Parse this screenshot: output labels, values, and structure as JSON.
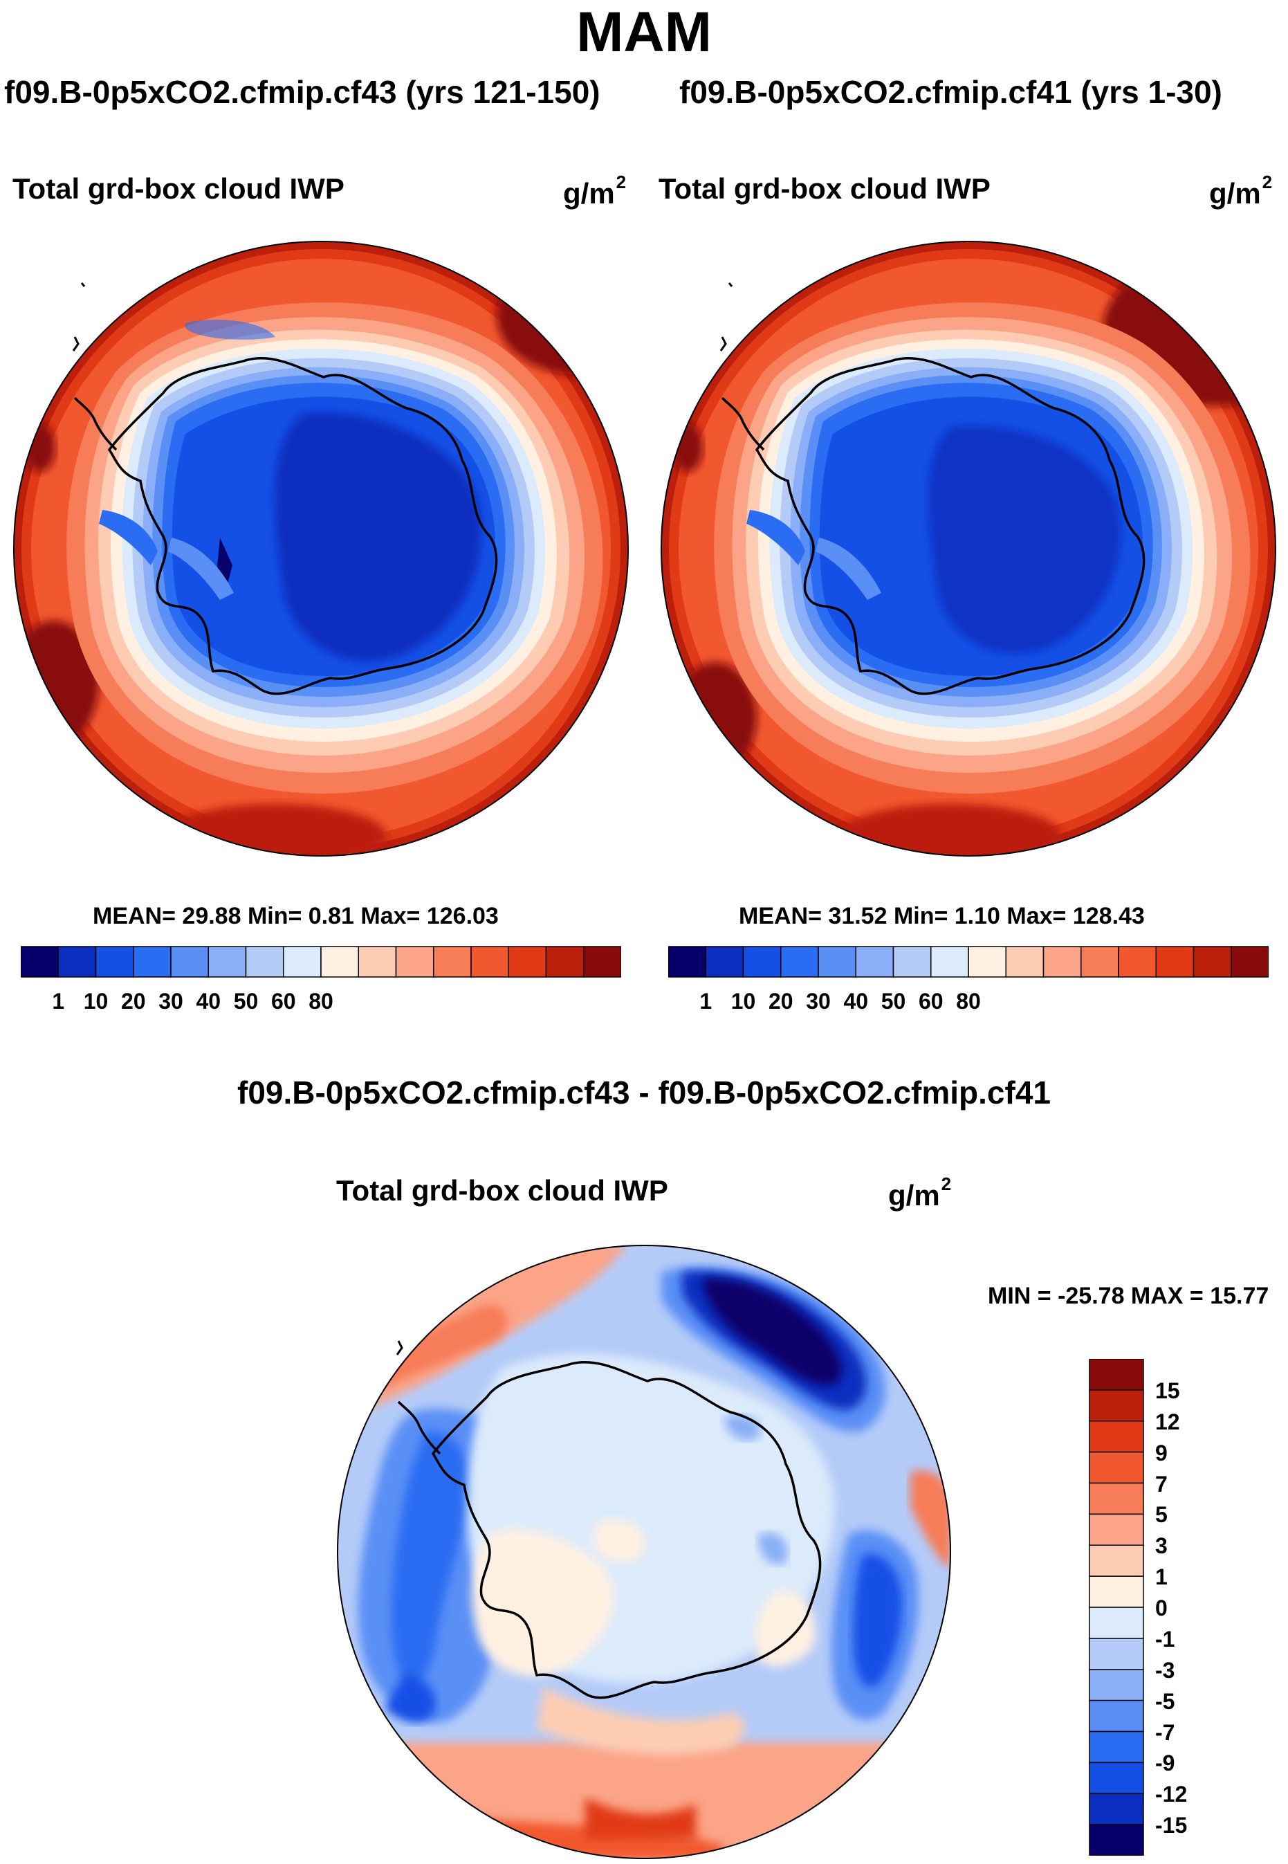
{
  "title": "MAM",
  "panels": [
    {
      "case": "f09.B-0p5xCO2.cfmip.cf43 (yrs 121-150)",
      "variable": "Total grd-box cloud IWP",
      "units": "g/m",
      "units_exp": "2",
      "stats": "MEAN=  29.88  Min=   0.81  Max= 126.03"
    },
    {
      "case": "f09.B-0p5xCO2.cfmip.cf41 (yrs 1-30)",
      "variable": "Total grd-box cloud IWP",
      "units": "g/m",
      "units_exp": "2",
      "stats": "MEAN=  31.52  Min=   1.10  Max= 128.43"
    }
  ],
  "diff": {
    "title": "f09.B-0p5xCO2.cfmip.cf43 - f09.B-0p5xCO2.cfmip.cf41",
    "variable": "Total grd-box cloud IWP",
    "units": "g/m",
    "units_exp": "2",
    "stats": "MIN = -25.78 MAX =  15.77"
  },
  "chart_data": [
    {
      "type": "heatmap",
      "projection": "south polar stereographic",
      "title": "Total grd-box cloud IWP",
      "units": "g/m2",
      "stats": {
        "mean": 29.88,
        "min": 0.81,
        "max": 126.03
      },
      "colorbar": {
        "labels": [
          "1",
          "10",
          "20",
          "30",
          "40",
          "50",
          "60",
          "80"
        ],
        "colors": [
          "#08006a",
          "#0a2ec0",
          "#1550e6",
          "#2a6cf2",
          "#5a8ff6",
          "#8aaef7",
          "#b4cbf8",
          "#dcebfb",
          "#fff0e2",
          "#fdccb2",
          "#fba487",
          "#f77c58",
          "#f2582f",
          "#e13a16",
          "#bc1f0c",
          "#8a0a0a"
        ]
      }
    },
    {
      "type": "heatmap",
      "projection": "south polar stereographic",
      "title": "Total grd-box cloud IWP",
      "units": "g/m2",
      "stats": {
        "mean": 31.52,
        "min": 1.1,
        "max": 128.43
      },
      "colorbar": {
        "labels": [
          "1",
          "10",
          "20",
          "30",
          "40",
          "50",
          "60",
          "80"
        ],
        "colors": [
          "#08006a",
          "#0a2ec0",
          "#1550e6",
          "#2a6cf2",
          "#5a8ff6",
          "#8aaef7",
          "#b4cbf8",
          "#dcebfb",
          "#fff0e2",
          "#fdccb2",
          "#fba487",
          "#f77c58",
          "#f2582f",
          "#e13a16",
          "#bc1f0c",
          "#8a0a0a"
        ]
      }
    },
    {
      "type": "heatmap",
      "projection": "south polar stereographic",
      "title": "Total grd-box cloud IWP",
      "units": "g/m2",
      "stats": {
        "min": -25.78,
        "max": 15.77
      },
      "colorbar": {
        "labels": [
          "15",
          "12",
          "9",
          "7",
          "5",
          "3",
          "1",
          "0",
          "-1",
          "-3",
          "-5",
          "-7",
          "-9",
          "-12",
          "-15"
        ],
        "colors": [
          "#8a0a0a",
          "#bc1f0c",
          "#e13a16",
          "#f2582f",
          "#f77c58",
          "#fba487",
          "#fdccb2",
          "#fff0e2",
          "#dcebfb",
          "#b4cbf8",
          "#8aaef7",
          "#5a8ff6",
          "#2a6cf2",
          "#1550e6",
          "#0a2ec0",
          "#08006a"
        ]
      }
    }
  ]
}
